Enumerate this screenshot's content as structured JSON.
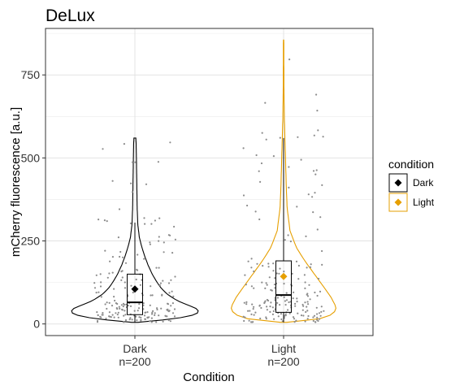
{
  "chart_data": {
    "type": "violin",
    "title": "DeLux",
    "xlabel": "Condition",
    "ylabel": "mCherry fluorescence [a.u.]",
    "ylim": [
      -35,
      890
    ],
    "yticks": [
      0,
      250,
      500,
      750
    ],
    "grid": true,
    "legend": {
      "title": "condition",
      "position": "right",
      "entries": [
        {
          "label": "Dark",
          "color": "#000000"
        },
        {
          "label": "Light",
          "color": "#E69F00"
        }
      ]
    },
    "groups": [
      {
        "name": "Dark",
        "n_label": "n=200",
        "color": "#000000",
        "mean": 105,
        "box": {
          "q1": 28,
          "median": 65,
          "q3": 150,
          "whisker_low": 5,
          "whisker_high": 305
        },
        "violin_max": 560,
        "violin_profile": [
          [
            5,
            0.05
          ],
          [
            15,
            0.6
          ],
          [
            25,
            0.88
          ],
          [
            35,
            1.0
          ],
          [
            45,
            0.97
          ],
          [
            55,
            0.85
          ],
          [
            70,
            0.66
          ],
          [
            90,
            0.5
          ],
          [
            110,
            0.4
          ],
          [
            130,
            0.33
          ],
          [
            150,
            0.27
          ],
          [
            175,
            0.21
          ],
          [
            200,
            0.16
          ],
          [
            230,
            0.11
          ],
          [
            260,
            0.07
          ],
          [
            300,
            0.045
          ],
          [
            350,
            0.035
          ],
          [
            420,
            0.03
          ],
          [
            480,
            0.025
          ],
          [
            540,
            0.02
          ],
          [
            560,
            0.015
          ]
        ]
      },
      {
        "name": "Light",
        "n_label": "n=200",
        "color": "#E69F00",
        "mean": 143,
        "box": {
          "q1": 35,
          "median": 87,
          "q3": 190,
          "whisker_low": 5,
          "whisker_high": 560
        },
        "violin_max": 855,
        "violin_profile": [
          [
            5,
            0.05
          ],
          [
            15,
            0.55
          ],
          [
            30,
            0.78
          ],
          [
            50,
            0.82
          ],
          [
            80,
            0.74
          ],
          [
            110,
            0.63
          ],
          [
            150,
            0.48
          ],
          [
            190,
            0.33
          ],
          [
            230,
            0.2
          ],
          [
            280,
            0.1
          ],
          [
            350,
            0.055
          ],
          [
            420,
            0.04
          ],
          [
            500,
            0.03
          ],
          [
            560,
            0.02
          ],
          [
            620,
            0.012
          ],
          [
            700,
            0.006
          ],
          [
            800,
            0.004
          ],
          [
            855,
            0.003
          ]
        ]
      }
    ]
  }
}
